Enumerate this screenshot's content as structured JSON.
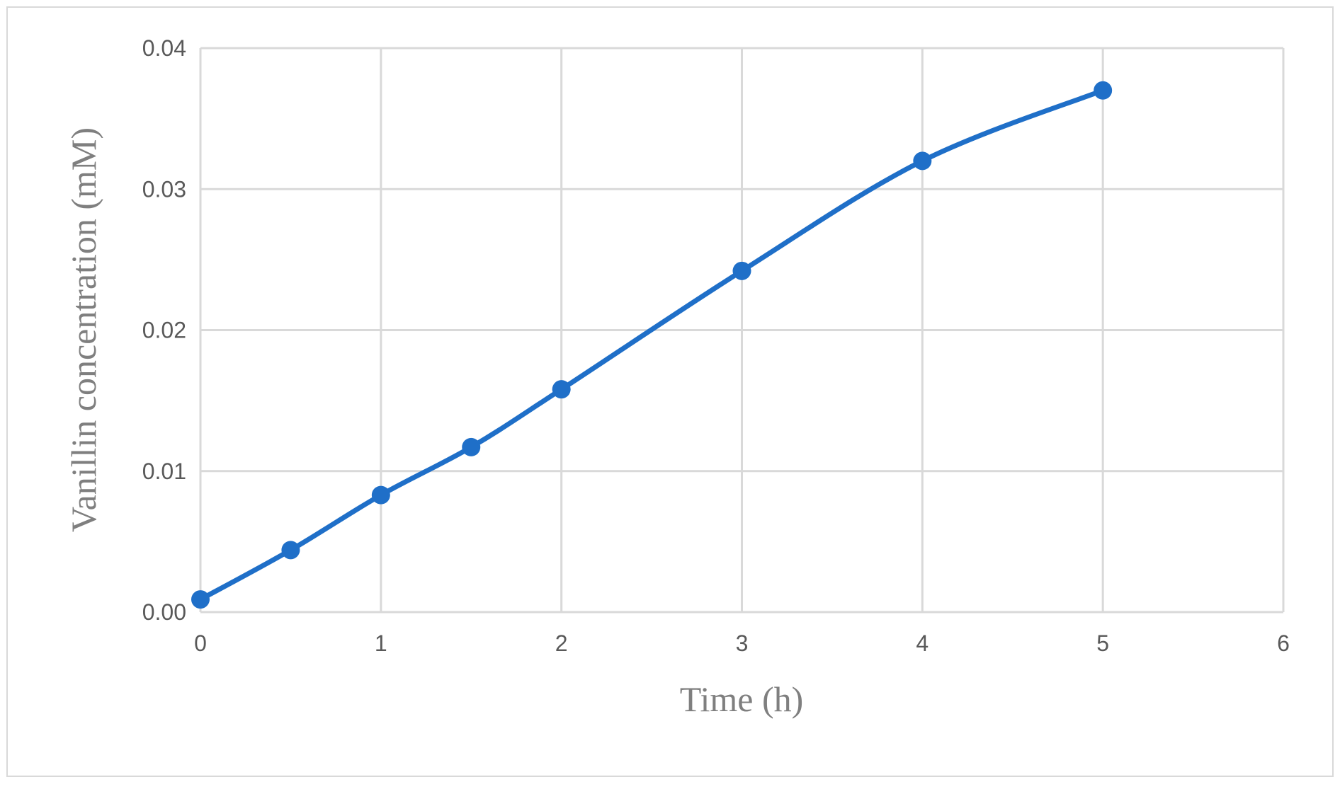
{
  "chart_data": {
    "type": "line",
    "x_label": "Time (h)",
    "y_label": "Vanillin concentration   (mM)",
    "x": [
      0,
      0.5,
      1,
      1.5,
      2,
      3,
      4,
      5
    ],
    "series": [
      {
        "color": "#1f6fc8",
        "values": [
          0.0009,
          0.0044,
          0.0083,
          0.0117,
          0.0158,
          0.0242,
          0.032,
          0.037
        ]
      }
    ],
    "xlim": [
      0,
      6
    ],
    "xticks": [
      0,
      1,
      2,
      3,
      4,
      5,
      6
    ],
    "ylim": [
      0,
      0.04
    ],
    "yticks": [
      {
        "value": 0,
        "label": "0.00"
      },
      0.01,
      0.02,
      0.03,
      0.04
    ],
    "grid": true,
    "smooth": true
  }
}
